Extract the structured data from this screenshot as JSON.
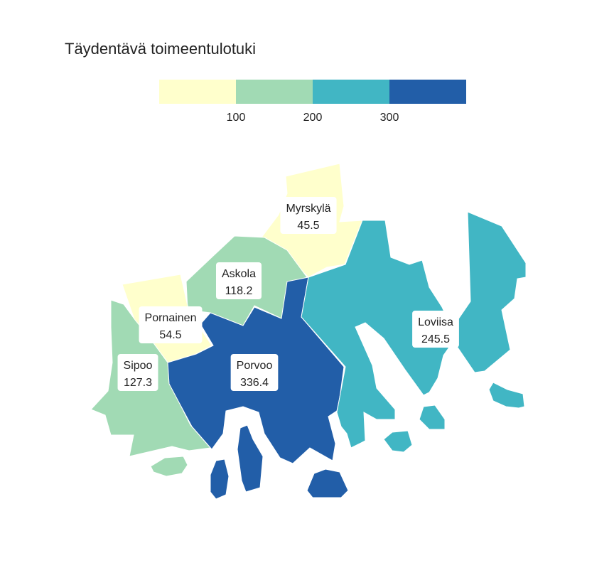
{
  "title": "Täydentävä toimeentulotuki",
  "chart_data": {
    "type": "choropleth",
    "legend": {
      "breaks": [
        100,
        200,
        300
      ],
      "colors": [
        "#ffffcc",
        "#a1dab4",
        "#41b6c4",
        "#225ea8"
      ]
    },
    "regions": [
      {
        "name": "Myrskylä",
        "value": 45.5
      },
      {
        "name": "Askola",
        "value": 118.2
      },
      {
        "name": "Pornainen",
        "value": 54.5
      },
      {
        "name": "Sipoo",
        "value": 127.3
      },
      {
        "name": "Porvoo",
        "value": 336.4
      },
      {
        "name": "Loviisa",
        "value": 245.5
      }
    ]
  }
}
